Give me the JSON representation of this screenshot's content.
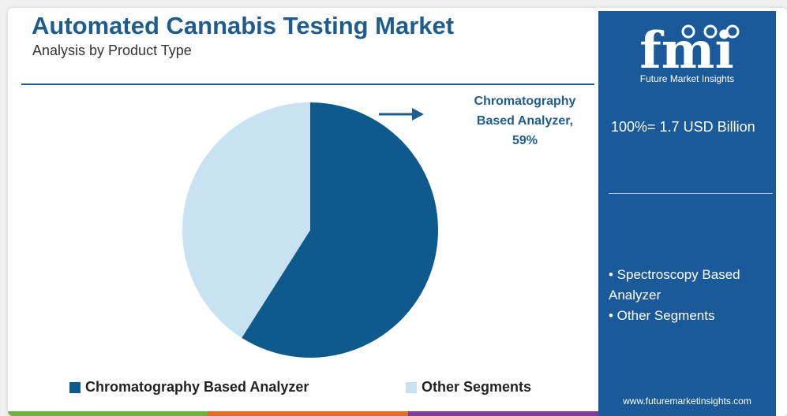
{
  "header": {
    "title": "Automated Cannabis Testing Market",
    "subtitle": "Analysis by Product Type"
  },
  "chart_data": {
    "type": "pie",
    "categories": [
      "Chromatography Based Analyzer",
      "Other Segments"
    ],
    "values": [
      59,
      41
    ],
    "unit": "%",
    "colors": [
      "#0f5a8c",
      "#c8e2f1"
    ],
    "annotations": [
      "Chromatography",
      "Based Analyzer,",
      "59%"
    ],
    "legend_position": "bottom"
  },
  "legend": {
    "items": [
      {
        "label": "Chromatography Based Analyzer",
        "color": "#0f5a8c"
      },
      {
        "label": "Other Segments",
        "color": "#c8e2f1"
      }
    ]
  },
  "sidebar": {
    "logo_text": "fmi",
    "logo_subtitle": "Future Market Insights",
    "total": "100%= 1.7 USD Billion",
    "other_segments": [
      "• Spectroscopy Based Analyzer",
      "• Other Segments"
    ],
    "website": "www.futuremarketinsights.com",
    "background_color": "#1a5a9a"
  },
  "bottom_bar_colors": [
    "#6db33f",
    "#e36c2b",
    "#7d3c98"
  ]
}
